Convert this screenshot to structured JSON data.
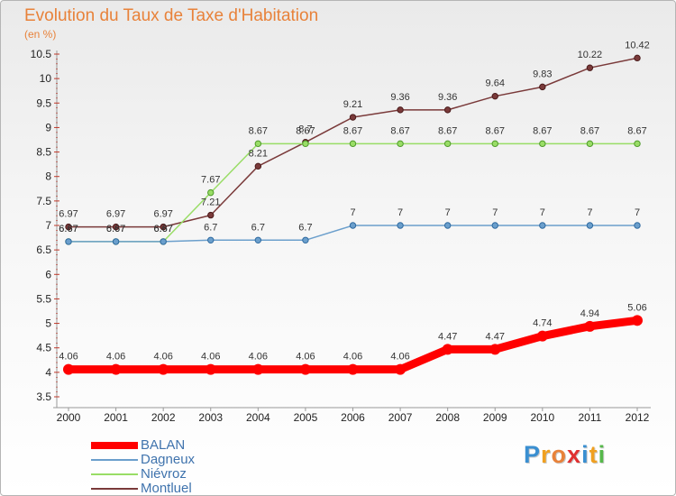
{
  "title": "Evolution du Taux de Taxe d'Habitation",
  "unit": "(en %)",
  "chart_data": {
    "type": "line",
    "x": [
      "2000",
      "2001",
      "2002",
      "2003",
      "2004",
      "2005",
      "2006",
      "2007",
      "2008",
      "2009",
      "2010",
      "2011",
      "2012"
    ],
    "ylim": [
      3.5,
      10.5
    ],
    "yticks": [
      "3.5",
      "4",
      "4.5",
      "5",
      "5.5",
      "6",
      "6.5",
      "7",
      "7.5",
      "8",
      "8.5",
      "9",
      "9.5",
      "10",
      "10.5"
    ],
    "grid": false,
    "legend_position": "bottom-left",
    "series": [
      {
        "name": "BALAN",
        "color": "#ff0000",
        "values": [
          4.06,
          4.06,
          4.06,
          4.06,
          4.06,
          4.06,
          4.06,
          4.06,
          4.47,
          4.47,
          4.74,
          4.94,
          5.06
        ],
        "labels": [
          "4.06",
          "4.06",
          "4.06",
          "4.06",
          "4.06",
          "4.06",
          "4.06",
          "4.06",
          "4.47",
          "4.47",
          "4.74",
          "4.94",
          "5.06"
        ]
      },
      {
        "name": "Dagneux",
        "color": "#6b9fcc",
        "values": [
          6.67,
          6.67,
          6.67,
          6.7,
          6.7,
          6.7,
          7,
          7,
          7,
          7,
          7,
          7,
          7
        ],
        "labels": [
          "6.67",
          "6.67",
          "6.67",
          "6.7",
          "6.7",
          "6.7",
          "7",
          "7",
          "7",
          "7",
          "7",
          "7",
          "7"
        ]
      },
      {
        "name": "Niévroz",
        "color": "#99dd66",
        "values": [
          6.67,
          6.67,
          6.67,
          7.67,
          8.67,
          8.67,
          8.67,
          8.67,
          8.67,
          8.67,
          8.67,
          8.67,
          8.67
        ],
        "labels": [
          "6.67",
          "6.67",
          "6.67",
          "7.67",
          "8.67",
          "8.67",
          "8.67",
          "8.67",
          "8.67",
          "8.67",
          "8.67",
          "8.67",
          "8.67"
        ]
      },
      {
        "name": "Montluel",
        "color": "#7a3a3a",
        "values": [
          6.97,
          6.97,
          6.97,
          7.21,
          8.21,
          8.7,
          9.21,
          9.36,
          9.36,
          9.64,
          9.83,
          10.22,
          10.42
        ],
        "labels": [
          "6.97",
          "6.97",
          "6.97",
          "7.21",
          "8.21",
          "8.7",
          "9.21",
          "9.36",
          "9.36",
          "9.64",
          "9.83",
          "10.22",
          "10.42"
        ]
      }
    ]
  },
  "logo": {
    "letters": [
      "P",
      "r",
      "o",
      "x",
      "i",
      "t",
      "i"
    ],
    "colors": [
      "#3a8fd1",
      "#f0a020",
      "#e8823a",
      "#e03030",
      "#3a8fd1",
      "#f0a020",
      "#56b84a"
    ]
  }
}
